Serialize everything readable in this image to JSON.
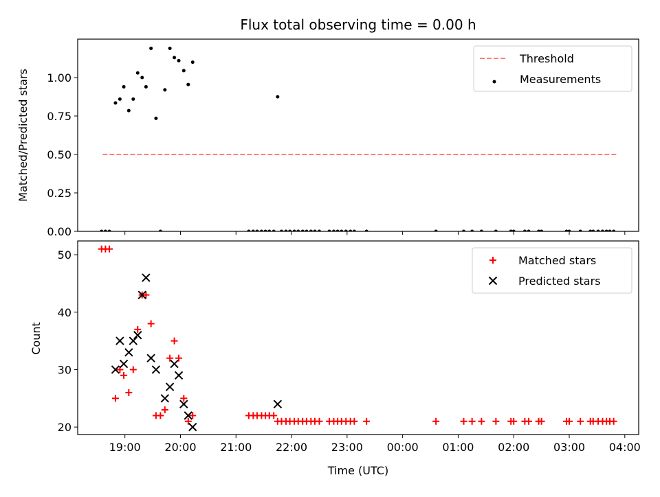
{
  "chart_data": [
    {
      "type": "scatter",
      "title": "Flux total observing time = 0.00 h",
      "xlabel": "",
      "ylabel": "Matched/Predicted stars",
      "ylim": [
        0,
        1.25
      ],
      "yticks": [
        "0.00",
        "0.25",
        "0.50",
        "0.75",
        "1.00"
      ],
      "xlim": [
        18.15,
        28.25
      ],
      "legend_position": "top-right",
      "series": [
        {
          "name": "Threshold",
          "kind": "dashed-line",
          "color": "#ff8080",
          "points": [
            [
              18.6,
              0.5
            ],
            [
              27.85,
              0.5
            ]
          ]
        },
        {
          "name": "Measurements",
          "kind": "dots",
          "color": "#000000",
          "points": [
            [
              18.58,
              0
            ],
            [
              18.65,
              0
            ],
            [
              18.72,
              0
            ],
            [
              18.83,
              0.835
            ],
            [
              18.91,
              0.86
            ],
            [
              18.98,
              0.94
            ],
            [
              19.07,
              0.785
            ],
            [
              19.15,
              0.86
            ],
            [
              19.23,
              1.03
            ],
            [
              19.31,
              1.0
            ],
            [
              19.38,
              0.94
            ],
            [
              19.47,
              1.19
            ],
            [
              19.56,
              0.735
            ],
            [
              19.64,
              0
            ],
            [
              19.72,
              0.92
            ],
            [
              19.81,
              1.19
            ],
            [
              19.89,
              1.13
            ],
            [
              19.97,
              1.11
            ],
            [
              20.06,
              1.045
            ],
            [
              20.14,
              0.955
            ],
            [
              20.22,
              1.1
            ],
            [
              21.23,
              0
            ],
            [
              21.31,
              0
            ],
            [
              21.38,
              0
            ],
            [
              21.46,
              0
            ],
            [
              21.53,
              0
            ],
            [
              21.6,
              0
            ],
            [
              21.68,
              0
            ],
            [
              21.75,
              0.875
            ],
            [
              21.82,
              0
            ],
            [
              21.9,
              0
            ],
            [
              21.97,
              0
            ],
            [
              22.05,
              0
            ],
            [
              22.12,
              0
            ],
            [
              22.2,
              0
            ],
            [
              22.27,
              0
            ],
            [
              22.35,
              0
            ],
            [
              22.42,
              0
            ],
            [
              22.5,
              0
            ],
            [
              22.68,
              0
            ],
            [
              22.76,
              0
            ],
            [
              22.83,
              0
            ],
            [
              22.9,
              0
            ],
            [
              22.98,
              0
            ],
            [
              23.06,
              0
            ],
            [
              23.13,
              0
            ],
            [
              23.35,
              0
            ],
            [
              24.6,
              0
            ],
            [
              25.1,
              0
            ],
            [
              25.25,
              0
            ],
            [
              25.42,
              0
            ],
            [
              25.68,
              0
            ],
            [
              25.95,
              0
            ],
            [
              26.0,
              0
            ],
            [
              26.2,
              0
            ],
            [
              26.27,
              0
            ],
            [
              26.45,
              0
            ],
            [
              26.5,
              0
            ],
            [
              26.95,
              0
            ],
            [
              27.0,
              0
            ],
            [
              27.2,
              0
            ],
            [
              27.38,
              0
            ],
            [
              27.43,
              0
            ],
            [
              27.52,
              0
            ],
            [
              27.6,
              0
            ],
            [
              27.67,
              0
            ],
            [
              27.73,
              0
            ],
            [
              27.8,
              0
            ]
          ]
        }
      ]
    },
    {
      "type": "scatter",
      "title": "",
      "xlabel": "Time (UTC)",
      "ylabel": "Count",
      "ylim": [
        18.7,
        52.4
      ],
      "yticks": [
        "20",
        "30",
        "40",
        "50"
      ],
      "xlim": [
        18.15,
        28.25
      ],
      "xticks": [
        "19:00",
        "20:00",
        "21:00",
        "22:00",
        "23:00",
        "00:00",
        "01:00",
        "02:00",
        "03:00",
        "04:00"
      ],
      "legend_position": "top-right",
      "series": [
        {
          "name": "Matched stars",
          "kind": "plus",
          "color": "#ff0000",
          "points": [
            [
              18.58,
              51
            ],
            [
              18.65,
              51
            ],
            [
              18.72,
              51
            ],
            [
              18.83,
              25
            ],
            [
              18.91,
              30
            ],
            [
              18.98,
              29
            ],
            [
              19.07,
              26
            ],
            [
              19.15,
              30
            ],
            [
              19.23,
              37
            ],
            [
              19.31,
              43
            ],
            [
              19.38,
              43
            ],
            [
              19.47,
              38
            ],
            [
              19.56,
              22
            ],
            [
              19.64,
              22
            ],
            [
              19.72,
              23
            ],
            [
              19.81,
              32
            ],
            [
              19.89,
              35
            ],
            [
              19.97,
              32
            ],
            [
              20.06,
              25
            ],
            [
              20.14,
              21
            ],
            [
              20.22,
              22
            ],
            [
              21.23,
              22
            ],
            [
              21.31,
              22
            ],
            [
              21.38,
              22
            ],
            [
              21.46,
              22
            ],
            [
              21.53,
              22
            ],
            [
              21.6,
              22
            ],
            [
              21.68,
              22
            ],
            [
              21.75,
              21
            ],
            [
              21.82,
              21
            ],
            [
              21.9,
              21
            ],
            [
              21.97,
              21
            ],
            [
              22.05,
              21
            ],
            [
              22.12,
              21
            ],
            [
              22.2,
              21
            ],
            [
              22.27,
              21
            ],
            [
              22.35,
              21
            ],
            [
              22.42,
              21
            ],
            [
              22.5,
              21
            ],
            [
              22.68,
              21
            ],
            [
              22.76,
              21
            ],
            [
              22.83,
              21
            ],
            [
              22.9,
              21
            ],
            [
              22.98,
              21
            ],
            [
              23.06,
              21
            ],
            [
              23.13,
              21
            ],
            [
              23.35,
              21
            ],
            [
              24.6,
              21
            ],
            [
              25.1,
              21
            ],
            [
              25.25,
              21
            ],
            [
              25.42,
              21
            ],
            [
              25.68,
              21
            ],
            [
              25.95,
              21
            ],
            [
              26.0,
              21
            ],
            [
              26.2,
              21
            ],
            [
              26.27,
              21
            ],
            [
              26.45,
              21
            ],
            [
              26.5,
              21
            ],
            [
              26.95,
              21
            ],
            [
              27.0,
              21
            ],
            [
              27.2,
              21
            ],
            [
              27.38,
              21
            ],
            [
              27.43,
              21
            ],
            [
              27.52,
              21
            ],
            [
              27.6,
              21
            ],
            [
              27.67,
              21
            ],
            [
              27.73,
              21
            ],
            [
              27.8,
              21
            ]
          ]
        },
        {
          "name": "Predicted stars",
          "kind": "x",
          "color": "#000000",
          "points": [
            [
              18.83,
              30
            ],
            [
              18.91,
              35
            ],
            [
              18.98,
              31
            ],
            [
              19.07,
              33
            ],
            [
              19.15,
              35
            ],
            [
              19.23,
              36
            ],
            [
              19.31,
              43
            ],
            [
              19.38,
              46
            ],
            [
              19.47,
              32
            ],
            [
              19.56,
              30
            ],
            [
              19.72,
              25
            ],
            [
              19.81,
              27
            ],
            [
              19.89,
              31
            ],
            [
              19.97,
              29
            ],
            [
              20.06,
              24
            ],
            [
              20.14,
              22
            ],
            [
              20.22,
              20
            ],
            [
              21.75,
              24
            ]
          ]
        }
      ]
    }
  ]
}
